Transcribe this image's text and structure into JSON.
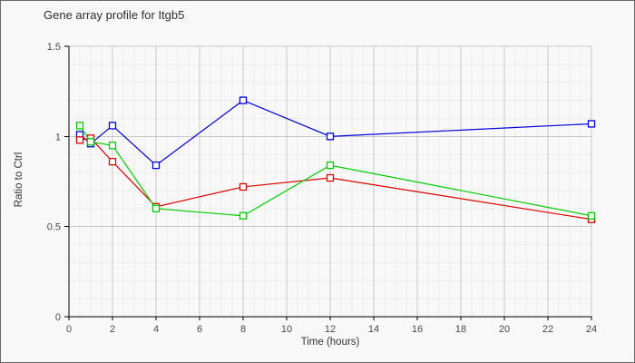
{
  "title": "Gene array profile for Itgb5",
  "chart_data": {
    "type": "line",
    "title": "Gene array profile for Itgb5",
    "xlabel": "Time (hours)",
    "ylabel": "Ratio to Ctrl",
    "x": [
      0.5,
      1,
      2,
      4,
      8,
      12,
      24
    ],
    "series": [
      {
        "name": "blue-series",
        "color": "#0000d8",
        "values": [
          1.01,
          0.96,
          1.06,
          0.84,
          1.2,
          1.0,
          1.07
        ]
      },
      {
        "name": "red-series",
        "color": "#dd0000",
        "values": [
          0.98,
          0.99,
          0.86,
          0.61,
          0.72,
          0.77,
          0.54
        ]
      },
      {
        "name": "green-series",
        "color": "#00cc00",
        "values": [
          1.06,
          0.97,
          0.95,
          0.6,
          0.56,
          0.84,
          0.56
        ]
      }
    ],
    "xlim": [
      0,
      24
    ],
    "ylim": [
      0,
      1.5
    ],
    "x_major_ticks": [
      0,
      2,
      4,
      6,
      8,
      10,
      12,
      14,
      16,
      18,
      20,
      22,
      24
    ],
    "x_minor_step": 0.5,
    "y_major_ticks": [
      0,
      0.5,
      1,
      1.5
    ],
    "y_tick_labels": [
      "0",
      "0.5",
      "1",
      "1.5"
    ],
    "y_minor_step": 0.1,
    "grid": true,
    "legend": "none",
    "marker": "open-square"
  },
  "colors": {
    "background": "#f8f8f8",
    "frame_border": "#6a6a6a",
    "major_grid": "#c9c9c9",
    "minor_grid": "#ededed",
    "axis": "#000000",
    "tick_text": "#4a4a4a",
    "label_text": "#333333"
  }
}
